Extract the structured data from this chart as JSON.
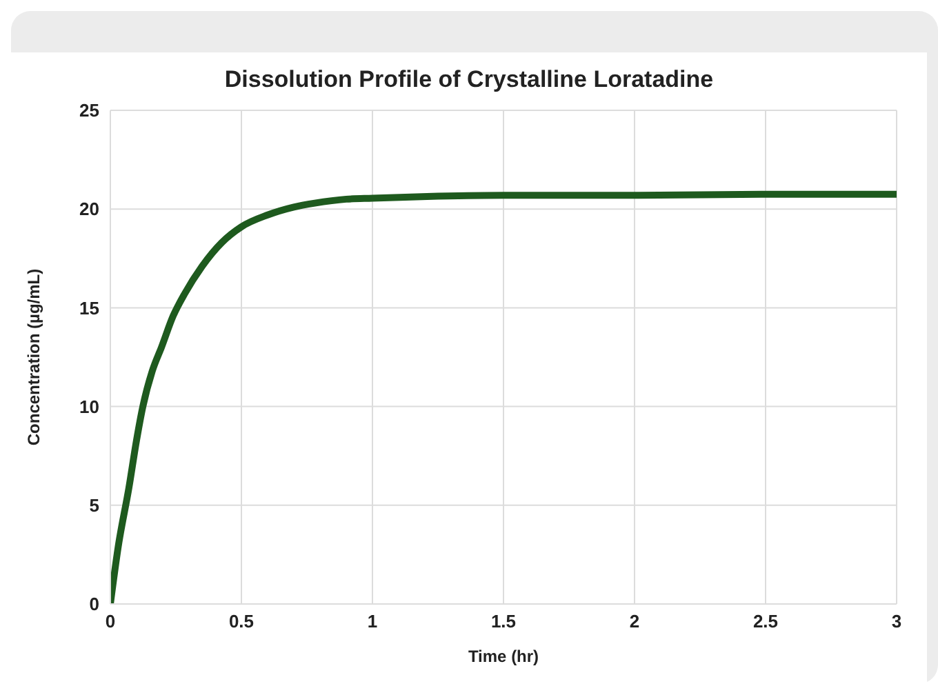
{
  "chart_data": {
    "type": "line",
    "title": "Dissolution Profile of Crystalline Loratadine",
    "xlabel": "Time (hr)",
    "ylabel": "Concentration (µg/mL)",
    "x": [
      0,
      0.03,
      0.071,
      0.1,
      0.124,
      0.16,
      0.195,
      0.24,
      0.283,
      0.35,
      0.425,
      0.5,
      0.6,
      0.7,
      0.78,
      0.9,
      1,
      1.25,
      1.5,
      2,
      2.5,
      3
    ],
    "series": [
      {
        "color": "#1e5a1e",
        "values": [
          0,
          2.9,
          5.9,
          8.3,
          10,
          11.8,
          13,
          14.6,
          15.7,
          17.1,
          18.3,
          19.1,
          19.7,
          20.1,
          20.3,
          20.5,
          20.55,
          20.65,
          20.7,
          20.7,
          20.75,
          20.75
        ]
      }
    ],
    "xlim": [
      0,
      3
    ],
    "xticks": [
      0,
      0.5,
      1,
      1.5,
      2,
      2.5,
      3
    ],
    "ylim": [
      0,
      25
    ],
    "yticks": [
      0,
      5,
      10,
      15,
      20,
      25
    ],
    "grid": true,
    "marker": "none",
    "line_style": "solid"
  }
}
